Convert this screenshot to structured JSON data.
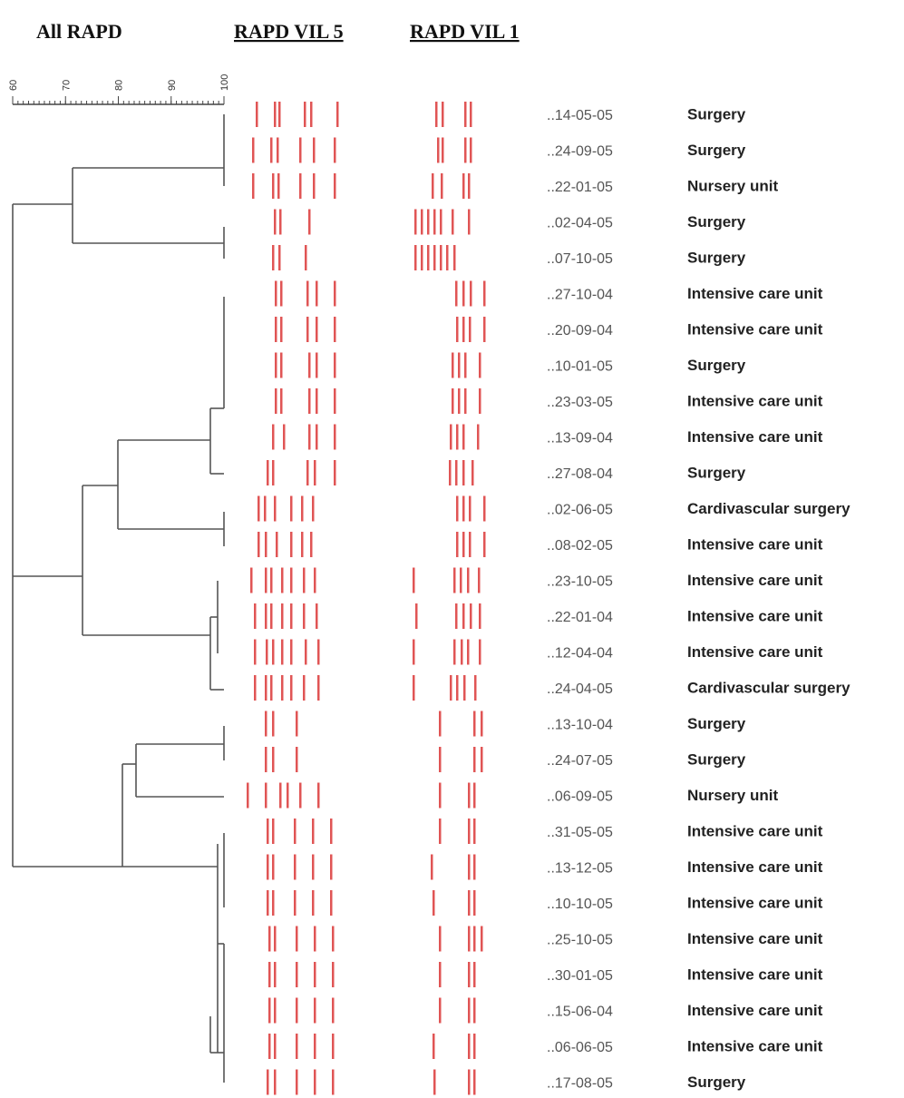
{
  "header": {
    "all": "All RAPD",
    "vil5": "RAPD VIL 5",
    "vil1": "RAPD VIL 1"
  },
  "scale": {
    "ticks": [
      60,
      70,
      80,
      90,
      100
    ],
    "lim": [
      60,
      100
    ]
  },
  "rows": [
    {
      "date": "..14-05-05",
      "unit": "Surgery"
    },
    {
      "date": "..24-09-05",
      "unit": "Surgery"
    },
    {
      "date": "..22-01-05",
      "unit": "Nursery unit"
    },
    {
      "date": "..02-04-05",
      "unit": "Surgery"
    },
    {
      "date": "..07-10-05",
      "unit": "Surgery"
    },
    {
      "date": "..27-10-04",
      "unit": "Intensive care unit"
    },
    {
      "date": "..20-09-04",
      "unit": "Intensive care unit"
    },
    {
      "date": "..10-01-05",
      "unit": "Surgery"
    },
    {
      "date": "..23-03-05",
      "unit": "Intensive care unit"
    },
    {
      "date": "..13-09-04",
      "unit": "Intensive care unit"
    },
    {
      "date": "..27-08-04",
      "unit": "Surgery"
    },
    {
      "date": "..02-06-05",
      "unit": "Cardivascular surgery"
    },
    {
      "date": "..08-02-05",
      "unit": "Intensive care unit"
    },
    {
      "date": "..23-10-05",
      "unit": "Intensive care unit"
    },
    {
      "date": "..22-01-04",
      "unit": "Intensive care unit"
    },
    {
      "date": "..12-04-04",
      "unit": "Intensive care unit"
    },
    {
      "date": "..24-04-05",
      "unit": "Cardivascular surgery"
    },
    {
      "date": "..13-10-04",
      "unit": "Surgery"
    },
    {
      "date": "..24-07-05",
      "unit": "Surgery"
    },
    {
      "date": "..06-09-05",
      "unit": "Nursery unit"
    },
    {
      "date": "..31-05-05",
      "unit": "Intensive care unit"
    },
    {
      "date": "..13-12-05",
      "unit": "Intensive care unit"
    },
    {
      "date": "..10-10-05",
      "unit": "Intensive care unit"
    },
    {
      "date": "..25-10-05",
      "unit": "Intensive care unit"
    },
    {
      "date": "..30-01-05",
      "unit": "Intensive care unit"
    },
    {
      "date": "..15-06-04",
      "unit": "Intensive care unit"
    },
    {
      "date": "..06-06-05",
      "unit": "Intensive care unit"
    },
    {
      "date": "..17-08-05",
      "unit": "Surgery"
    }
  ]
}
